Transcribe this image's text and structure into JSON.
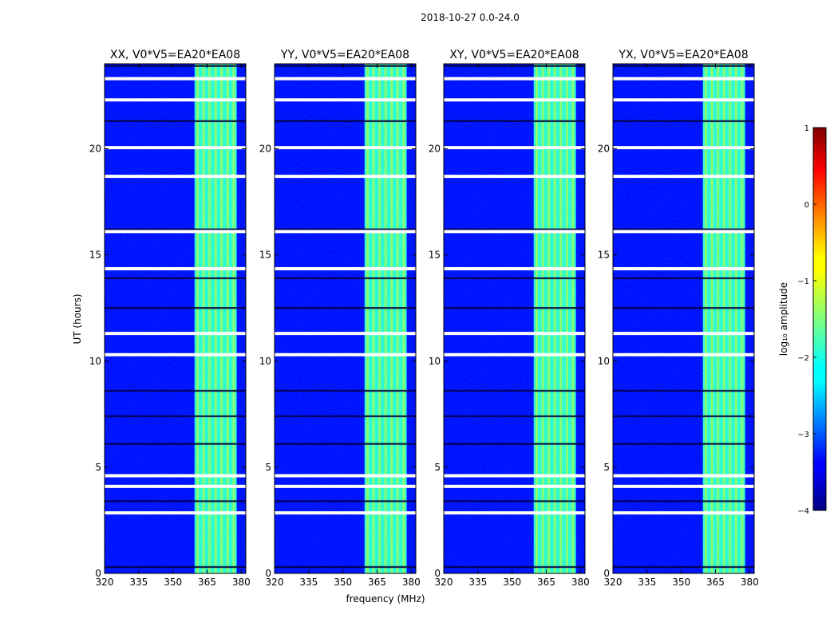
{
  "figure": {
    "suptitle": "2018-10-27 0.0-24.0"
  },
  "chart_data": {
    "type": "heatmap",
    "xlabel": "frequency (MHz)",
    "ylabel": "UT (hours)",
    "xlim": [
      320,
      382
    ],
    "ylim": [
      0,
      24
    ],
    "xticks": [
      320,
      335,
      350,
      365,
      380
    ],
    "yticks": [
      0,
      5,
      10,
      15,
      20
    ],
    "xtick_labels": [
      "320",
      "335",
      "350",
      "365",
      "380"
    ],
    "ytick_labels": [
      "0",
      "5",
      "10",
      "15",
      "20"
    ],
    "panels": [
      {
        "title": "XX, V0*V5=EA20*EA08"
      },
      {
        "title": "YY, V0*V5=EA20*EA08"
      },
      {
        "title": "XY, V0*V5=EA20*EA08"
      },
      {
        "title": "YX, V0*V5=EA20*EA08"
      }
    ],
    "bright_band_mhz": [
      359.5,
      378
    ],
    "bright_band_log_amplitude": -1.9,
    "background_log_amplitude": -3.3,
    "flagged_rows_ut": [
      2.85,
      4.1,
      4.6,
      10.3,
      11.3,
      14.35,
      16.1,
      18.7,
      20.05,
      22.3,
      23.3
    ],
    "colorbar": {
      "label": "log₁₀ amplitude",
      "ticks": [
        1,
        0,
        -1,
        -2,
        -3,
        -4
      ],
      "tick_labels": [
        "1",
        "0",
        "−1",
        "−2",
        "−3",
        "−4"
      ],
      "vmin": -4,
      "vmax": 1,
      "colormap": "jet"
    }
  }
}
